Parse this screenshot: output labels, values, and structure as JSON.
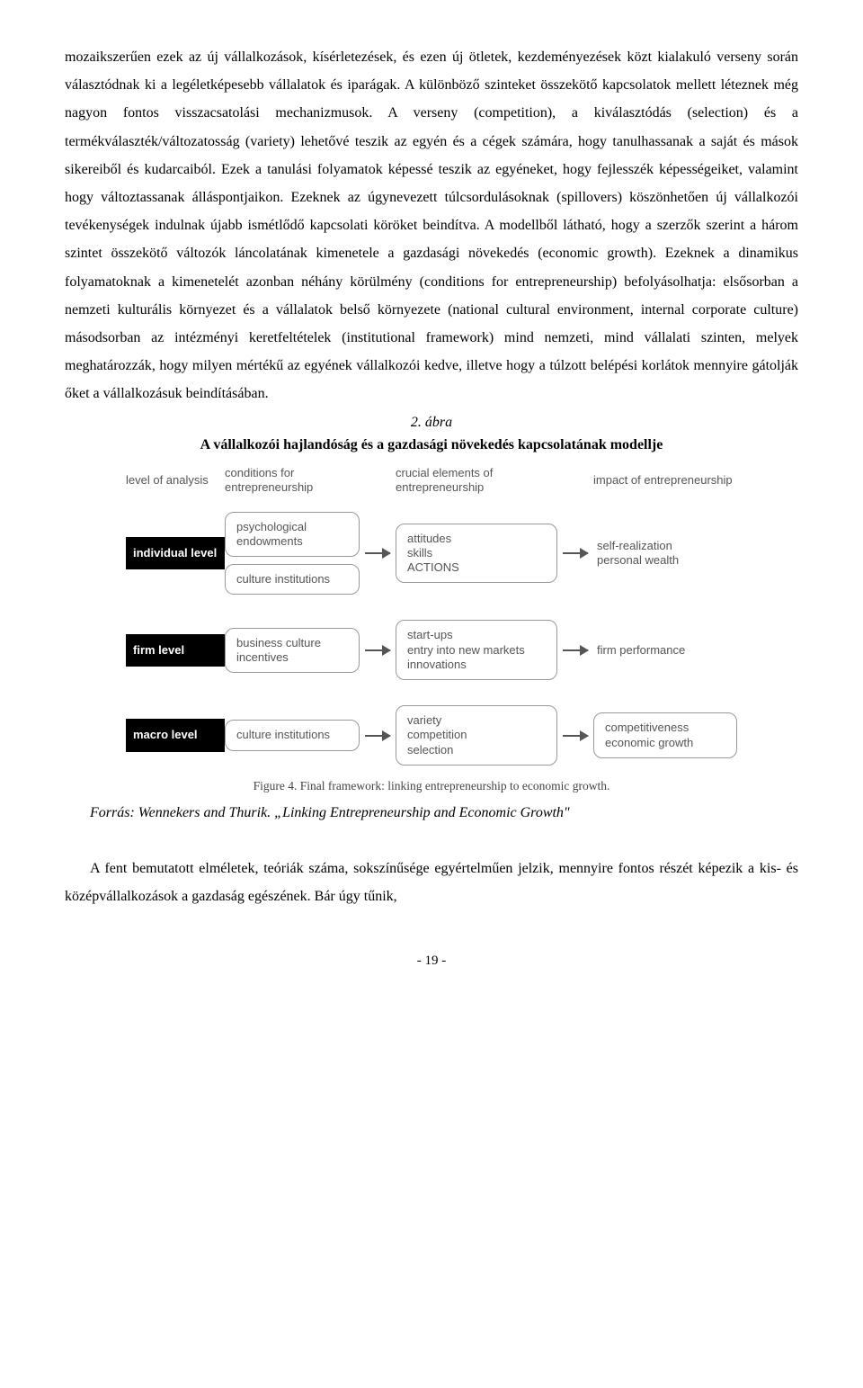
{
  "body_text": "mozaikszerűen ezek az új vállalkozások, kísérletezések, és ezen új ötletek, kezdeményezések közt kialakuló verseny során választódnak ki a legéletképesebb vállalatok és iparágak. A különböző szinteket összekötő kapcsolatok mellett léteznek még nagyon fontos visszacsatolási mechanizmusok. A verseny (competition), a kiválasztódás (selection) és a termékválaszték/változatosság (variety) lehetővé teszik az egyén és a cégek számára, hogy tanulhassanak a saját és mások sikereiből és kudarcaiból. Ezek a tanulási folyamatok képessé teszik az egyéneket, hogy fejlesszék képességeiket, valamint hogy változtassanak álláspontjaikon. Ezeknek az úgynevezett túlcsordulásoknak (spillovers) köszönhetően új vállalkozói tevékenységek indulnak újabb ismétlődő kapcsolati köröket beindítva. A modellből látható, hogy a szerzők szerint a három szintet összekötő változók láncolatának kimenetele a gazdasági növekedés (economic growth). Ezeknek a dinamikus folyamatoknak a kimenetelét azonban néhány körülmény (conditions for entrepreneurship) befolyásolhatja: elsősorban a nemzeti kulturális környezet és a vállalatok belső környezete (national cultural environment, internal corporate culture) másodsorban az intézményi keretfeltételek (institutional framework) mind nemzeti, mind vállalati szinten, melyek meghatározzák, hogy milyen mértékű az egyének vállalkozói kedve, illetve hogy a túlzott belépési korlátok mennyire gátolják őket a vállalkozásuk beindításában.",
  "figure": {
    "label": "2. ábra",
    "title": "A vállalkozói hajlandóság és a gazdasági növekedés kapcsolatának modellje",
    "headers": {
      "level": "level of analysis",
      "conditions": "conditions for entrepreneurship",
      "crucial": "crucial elements of entrepreneurship",
      "impact": "impact of entrepreneurship"
    },
    "rows": [
      {
        "level": "individual level",
        "conditions": [
          "psychological endowments",
          "culture institutions"
        ],
        "crucial": "attitudes\nskills\nACTIONS",
        "impact": "self-realization\npersonal wealth"
      },
      {
        "level": "firm level",
        "conditions": [
          "business culture incentives"
        ],
        "crucial": "start-ups\nentry into new markets\ninnovations",
        "impact": "firm performance"
      },
      {
        "level": "macro level",
        "conditions": [
          "culture institutions"
        ],
        "crucial": "variety\ncompetition\nselection",
        "impact": "competitiveness\neconomic growth"
      }
    ],
    "caption": "Figure 4.  Final framework: linking entrepreneurship to economic growth.",
    "source": "Forrás: Wennekers and Thurik. „Linking Entrepreneurship and Economic Growth\""
  },
  "closing": "A fent bemutatott elméletek, teóriák száma, sokszínűsége egyértelműen jelzik, mennyire fontos részét képezik a kis- és középvállalkozások a gazdaság egészének. Bár úgy tűnik,",
  "page_number": "- 19 -",
  "colors": {
    "text": "#000000",
    "diagram_text": "#666666",
    "box_border": "#999999",
    "level_bg": "#000000",
    "level_fg": "#ffffff",
    "arrow": "#555555"
  }
}
